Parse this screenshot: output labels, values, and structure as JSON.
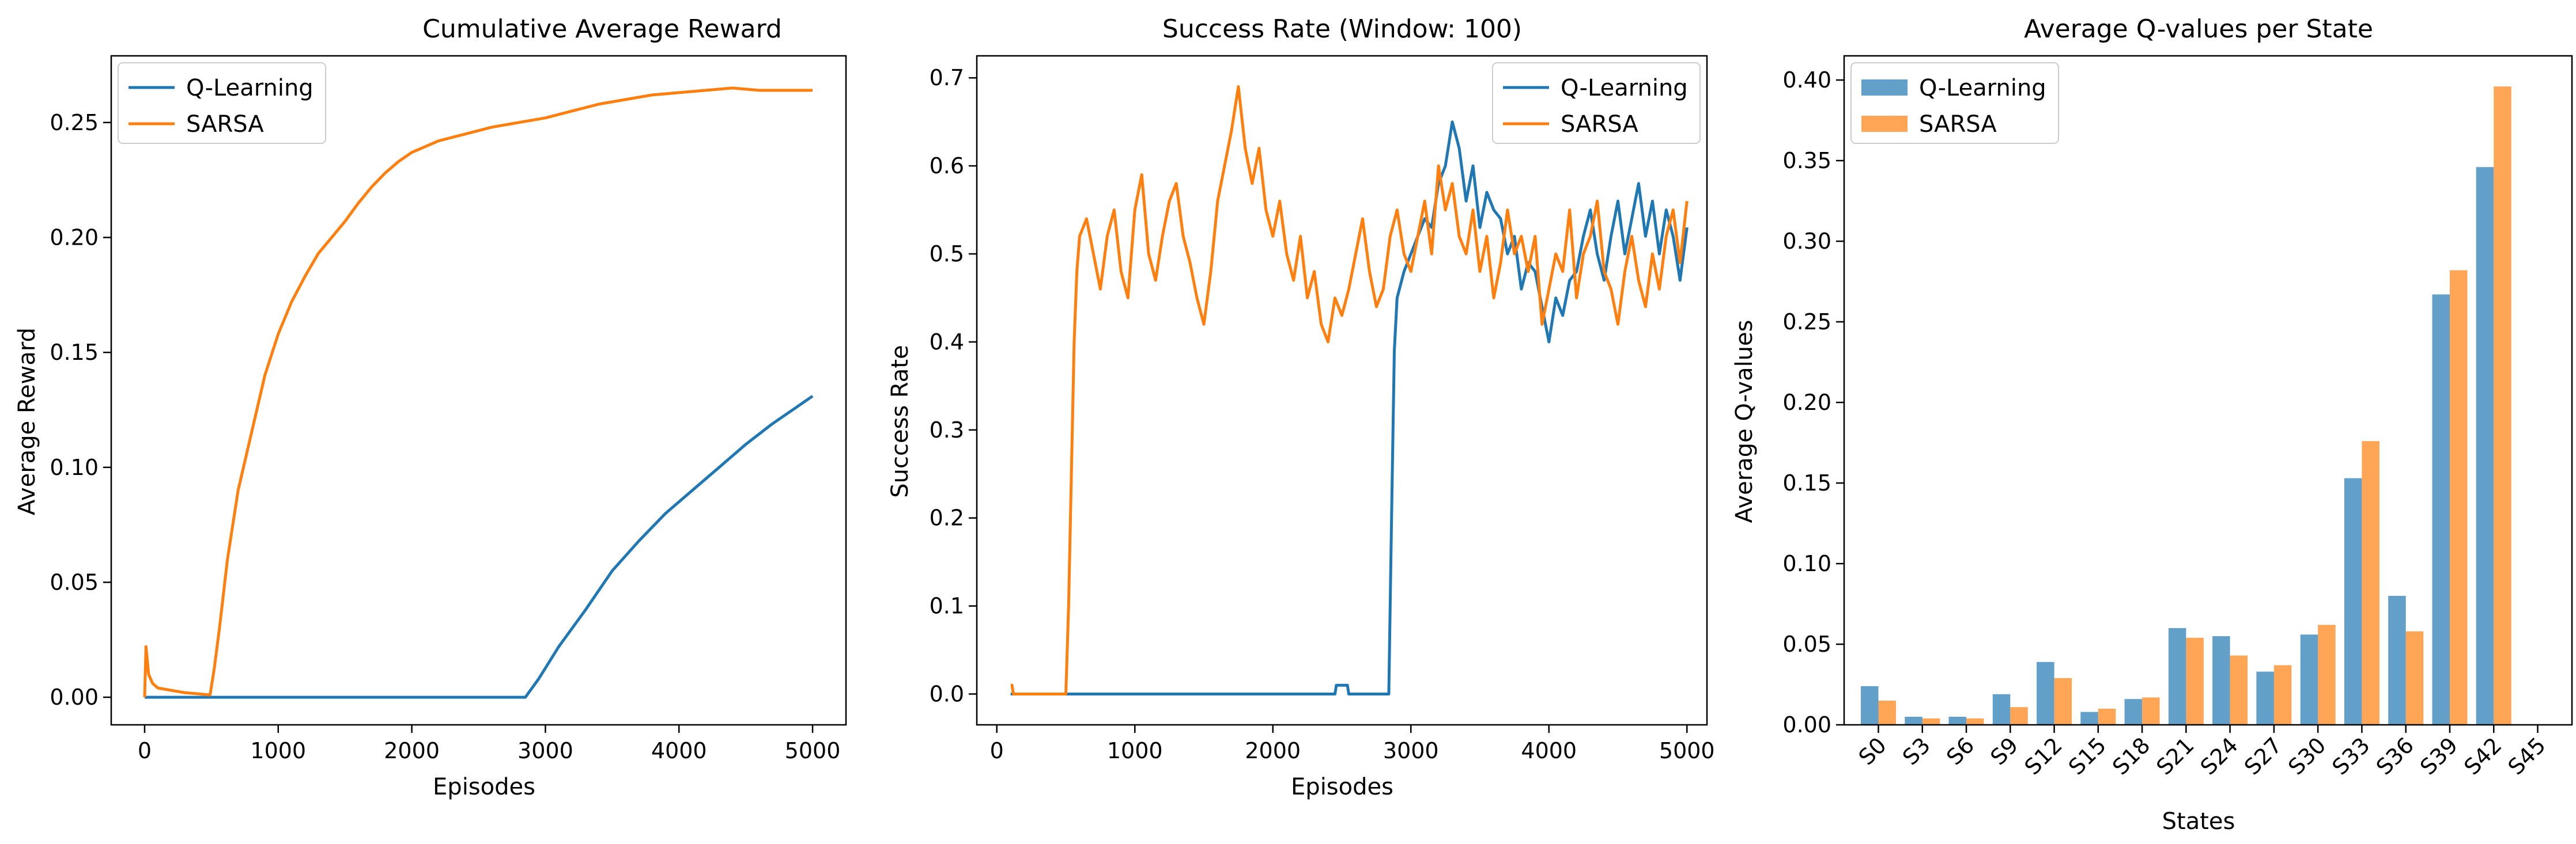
{
  "colors": {
    "q_learning": "#1f77b4",
    "sarsa": "#ff7f0e"
  },
  "chart_data": [
    {
      "type": "line",
      "title": "Cumulative Average Reward",
      "xlabel": "Episodes",
      "ylabel": "Average Reward",
      "xlim": [
        -250,
        5250
      ],
      "ylim": [
        -0.012,
        0.279
      ],
      "xticks": [
        0,
        1000,
        2000,
        3000,
        4000,
        5000
      ],
      "yticks": [
        0.0,
        0.05,
        0.1,
        0.15,
        0.2,
        0.25
      ],
      "ytick_format": 2,
      "legend": "top-left",
      "series": [
        {
          "name": "Q-Learning",
          "color": "#1f77b4",
          "x": [
            0,
            500,
            1000,
            1500,
            2000,
            2500,
            2850,
            2950,
            3100,
            3300,
            3500,
            3700,
            3900,
            4100,
            4300,
            4500,
            4700,
            4900,
            5000
          ],
          "y": [
            0,
            0,
            0,
            0,
            0,
            0,
            0,
            0.008,
            0.022,
            0.038,
            0.055,
            0.068,
            0.08,
            0.09,
            0.1,
            0.11,
            0.119,
            0.127,
            0.131
          ]
        },
        {
          "name": "SARSA",
          "color": "#ff7f0e",
          "x": [
            0,
            10,
            30,
            60,
            100,
            200,
            300,
            400,
            490,
            520,
            560,
            620,
            700,
            800,
            900,
            1000,
            1100,
            1200,
            1300,
            1400,
            1500,
            1600,
            1700,
            1800,
            1900,
            2000,
            2200,
            2400,
            2600,
            2800,
            3000,
            3200,
            3400,
            3600,
            3800,
            4000,
            4200,
            4400,
            4600,
            4800,
            5000
          ],
          "y": [
            0,
            0.022,
            0.01,
            0.006,
            0.004,
            0.003,
            0.002,
            0.0015,
            0.001,
            0.012,
            0.03,
            0.06,
            0.09,
            0.115,
            0.14,
            0.158,
            0.172,
            0.183,
            0.193,
            0.2,
            0.207,
            0.215,
            0.222,
            0.228,
            0.233,
            0.237,
            0.242,
            0.245,
            0.248,
            0.25,
            0.252,
            0.255,
            0.258,
            0.26,
            0.262,
            0.263,
            0.264,
            0.265,
            0.264,
            0.264,
            0.264
          ]
        }
      ]
    },
    {
      "type": "line",
      "title": "Success Rate (Window: 100)",
      "xlabel": "Episodes",
      "ylabel": "Success Rate",
      "xlim": [
        -145,
        5145
      ],
      "ylim": [
        -0.035,
        0.725
      ],
      "xticks": [
        0,
        1000,
        2000,
        3000,
        4000,
        5000
      ],
      "yticks": [
        0.0,
        0.1,
        0.2,
        0.3,
        0.4,
        0.5,
        0.6,
        0.7
      ],
      "ytick_format": 1,
      "legend": "top-right",
      "series": [
        {
          "name": "Q-Learning",
          "color": "#1f77b4",
          "x": [
            100,
            500,
            1000,
            1500,
            2000,
            2400,
            2450,
            2460,
            2540,
            2550,
            2700,
            2840,
            2860,
            2880,
            2900,
            2950,
            3000,
            3050,
            3100,
            3150,
            3200,
            3250,
            3300,
            3350,
            3400,
            3450,
            3500,
            3550,
            3600,
            3650,
            3700,
            3750,
            3800,
            3850,
            3900,
            3950,
            4000,
            4050,
            4100,
            4150,
            4200,
            4250,
            4300,
            4350,
            4400,
            4450,
            4500,
            4550,
            4600,
            4650,
            4700,
            4750,
            4800,
            4850,
            4900,
            4950,
            5000
          ],
          "y": [
            0,
            0,
            0,
            0,
            0,
            0,
            0,
            0.01,
            0.01,
            0,
            0,
            0,
            0.2,
            0.39,
            0.45,
            0.48,
            0.5,
            0.52,
            0.54,
            0.53,
            0.58,
            0.6,
            0.65,
            0.62,
            0.56,
            0.6,
            0.53,
            0.57,
            0.55,
            0.54,
            0.5,
            0.52,
            0.46,
            0.49,
            0.48,
            0.44,
            0.4,
            0.45,
            0.43,
            0.47,
            0.48,
            0.52,
            0.55,
            0.5,
            0.47,
            0.52,
            0.56,
            0.5,
            0.54,
            0.58,
            0.52,
            0.56,
            0.5,
            0.55,
            0.52,
            0.47,
            0.53
          ]
        },
        {
          "name": "SARSA",
          "color": "#ff7f0e",
          "x": [
            100,
            110,
            120,
            500,
            520,
            540,
            560,
            580,
            600,
            650,
            700,
            750,
            800,
            850,
            900,
            950,
            1000,
            1050,
            1100,
            1150,
            1200,
            1250,
            1300,
            1350,
            1400,
            1450,
            1500,
            1550,
            1600,
            1650,
            1700,
            1750,
            1800,
            1850,
            1900,
            1950,
            2000,
            2050,
            2100,
            2150,
            2200,
            2250,
            2300,
            2350,
            2400,
            2450,
            2500,
            2550,
            2600,
            2650,
            2700,
            2750,
            2800,
            2850,
            2900,
            2950,
            3000,
            3050,
            3100,
            3150,
            3200,
            3250,
            3300,
            3350,
            3400,
            3450,
            3500,
            3550,
            3600,
            3650,
            3700,
            3750,
            3800,
            3850,
            3900,
            3950,
            4000,
            4050,
            4100,
            4150,
            4200,
            4250,
            4300,
            4350,
            4400,
            4450,
            4500,
            4550,
            4600,
            4650,
            4700,
            4750,
            4800,
            4850,
            4900,
            4950,
            5000
          ],
          "y": [
            0.01,
            0.01,
            0,
            0,
            0.1,
            0.25,
            0.4,
            0.48,
            0.52,
            0.54,
            0.5,
            0.46,
            0.52,
            0.55,
            0.48,
            0.45,
            0.55,
            0.59,
            0.5,
            0.47,
            0.52,
            0.56,
            0.58,
            0.52,
            0.49,
            0.45,
            0.42,
            0.48,
            0.56,
            0.6,
            0.64,
            0.69,
            0.62,
            0.58,
            0.62,
            0.55,
            0.52,
            0.56,
            0.5,
            0.47,
            0.52,
            0.45,
            0.48,
            0.42,
            0.4,
            0.45,
            0.43,
            0.46,
            0.5,
            0.54,
            0.48,
            0.44,
            0.46,
            0.52,
            0.55,
            0.5,
            0.48,
            0.52,
            0.56,
            0.5,
            0.6,
            0.55,
            0.58,
            0.52,
            0.5,
            0.55,
            0.48,
            0.52,
            0.45,
            0.49,
            0.55,
            0.5,
            0.52,
            0.48,
            0.52,
            0.42,
            0.46,
            0.5,
            0.48,
            0.55,
            0.45,
            0.5,
            0.52,
            0.56,
            0.48,
            0.46,
            0.42,
            0.48,
            0.52,
            0.47,
            0.44,
            0.5,
            0.46,
            0.52,
            0.55,
            0.49,
            0.56
          ]
        }
      ]
    },
    {
      "type": "bar",
      "title": "Average Q-values per State",
      "xlabel": "States",
      "ylabel": "Average Q-values",
      "ylim": [
        0,
        0.415
      ],
      "yticks": [
        0.0,
        0.05,
        0.1,
        0.15,
        0.2,
        0.25,
        0.3,
        0.35,
        0.4
      ],
      "ytick_format": 2,
      "legend": "top-left",
      "categories": [
        "S0",
        "S3",
        "S6",
        "S9",
        "S12",
        "S15",
        "S18",
        "S21",
        "S24",
        "S27",
        "S30",
        "S33",
        "S36",
        "S39",
        "S42",
        "S45"
      ],
      "series": [
        {
          "name": "Q-Learning",
          "color": "#1f77b4",
          "values": [
            0.024,
            0.005,
            0.005,
            0.019,
            0.039,
            0.008,
            0.016,
            0.06,
            0.055,
            0.033,
            0.056,
            0.153,
            0.08,
            0.267,
            0.346,
            0.0
          ]
        },
        {
          "name": "SARSA",
          "color": "#ff7f0e",
          "values": [
            0.015,
            0.004,
            0.004,
            0.011,
            0.029,
            0.01,
            0.017,
            0.054,
            0.043,
            0.037,
            0.062,
            0.176,
            0.058,
            0.282,
            0.396,
            0.0
          ]
        }
      ]
    }
  ]
}
